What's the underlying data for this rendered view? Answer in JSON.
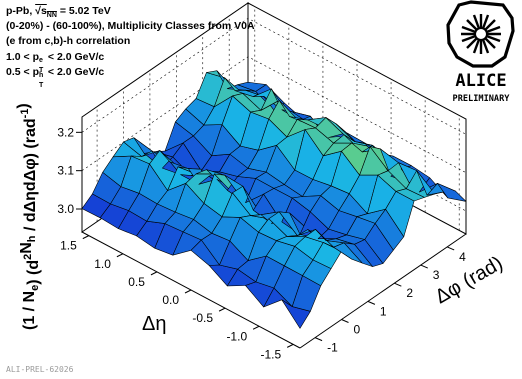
{
  "info": {
    "system": "p-Pb, √sNN = 5.02 TeV",
    "system_parts": {
      "prefix": "p-Pb, ",
      "sqrt_sym": "√",
      "s": "s",
      "sub": "NN",
      "suffix": " = 5.02 TeV"
    },
    "classes": "(0-20%) - (60-100%), Multiplicity Classes from V0A",
    "correlation": "(e from c,b)-h correlation",
    "pt_e": {
      "lo": "1.0 < p",
      "sup": "e",
      "sub": "T",
      "hi": " < 2.0 GeV/c"
    },
    "pt_h": {
      "lo": "0.5 < p",
      "sup": "h",
      "sub": "T",
      "hi": " < 2.0 GeV/c"
    }
  },
  "logo": {
    "name": "ALICE",
    "tag": "PRELIMINARY"
  },
  "prelim_id": "ALI-PREL-62026",
  "colors": {
    "low": "#1428d2",
    "mid": "#19b4e6",
    "high": "#a0e632",
    "top": "#ffa014"
  },
  "chart_data": {
    "type": "surface",
    "title": "",
    "x_label": "Δφ (rad)",
    "y_label": "Δη",
    "z_label": "(1 / Ne) (d²Nh / dΔηdΔφ) (rad⁻¹)",
    "x_range": [
      -1.5708,
      4.7124
    ],
    "y_range": [
      -1.6,
      1.6
    ],
    "z_range": [
      2.94,
      3.24
    ],
    "x_ticks": [
      -1,
      0,
      1,
      2,
      3,
      4
    ],
    "y_ticks": [
      -1.5,
      -1.0,
      -0.5,
      0.0,
      0.5,
      1.0,
      1.5
    ],
    "y_tick_labels": [
      "-1.5",
      "-1.0",
      "-0.5",
      "0.0",
      "0.5",
      "1.0",
      "1.5"
    ],
    "z_ticks": [
      3.0,
      3.1,
      3.2
    ],
    "z_tick_labels": [
      "3.0",
      "3.1",
      "3.2"
    ],
    "grid": true,
    "x_bins": 16,
    "y_bins": 12,
    "shape": {
      "baseline": 3.02,
      "near_side_ridge_amplitude": 0.09,
      "away_side_ridge_amplitude": 0.12,
      "fluctuation": 0.03
    }
  }
}
